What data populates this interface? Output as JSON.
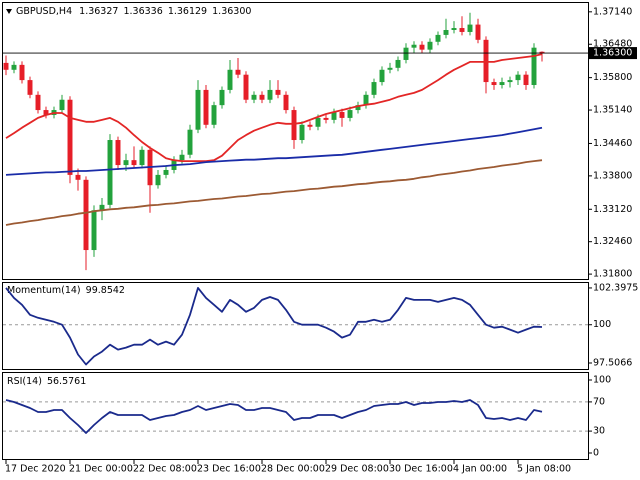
{
  "chart_data": [
    {
      "type": "candlestick",
      "title": "GBPUSD,H4",
      "last_labels": {
        "open": "1.36327",
        "high": "1.36336",
        "low": "1.36129",
        "close": "1.36300"
      },
      "categories": [
        "17 Dec 2020",
        null,
        null,
        null,
        null,
        null,
        null,
        null,
        "21 Dec 00:00",
        null,
        null,
        null,
        null,
        null,
        null,
        null,
        "22 Dec 08:00",
        null,
        null,
        null,
        null,
        null,
        null,
        null,
        "23 Dec 16:00",
        null,
        null,
        null,
        null,
        null,
        null,
        null,
        "28 Dec 00:00",
        null,
        null,
        null,
        null,
        null,
        null,
        null,
        "29 Dec 08:00",
        null,
        null,
        null,
        null,
        null,
        null,
        null,
        "30 Dec 16:00",
        null,
        null,
        null,
        null,
        null,
        null,
        null,
        "4 Jan 00:00",
        null,
        null,
        null,
        null,
        null,
        null,
        null,
        "5 Jan 08:00",
        null,
        null,
        null
      ],
      "open": [
        1.361,
        1.3596,
        1.3606,
        1.3575,
        1.3545,
        1.3514,
        1.3504,
        1.3514,
        1.3535,
        1.3382,
        1.3372,
        1.3229,
        1.331,
        1.3321,
        1.3453,
        1.3402,
        1.3412,
        1.3402,
        1.3433,
        1.3361,
        1.3382,
        1.3392,
        1.3412,
        1.3423,
        1.3474,
        1.3555,
        1.3484,
        1.3524,
        1.3555,
        1.3596,
        1.3586,
        1.3535,
        1.3545,
        1.3535,
        1.3555,
        1.3545,
        1.3514,
        1.3453,
        1.3484,
        1.348,
        1.3498,
        1.3494,
        1.351,
        1.3498,
        1.3514,
        1.3524,
        1.3545,
        1.3571,
        1.3596,
        1.36,
        1.3616,
        1.3641,
        1.3647,
        1.3637,
        1.3653,
        1.3667,
        1.3677,
        1.3681,
        1.3673,
        1.3688,
        1.3657,
        1.3571,
        1.3565,
        1.3571,
        1.3575,
        1.3586,
        1.3565,
        1.36327
      ],
      "high": [
        1.3625,
        1.3613,
        1.3613,
        1.3582,
        1.3552,
        1.3521,
        1.3521,
        1.3545,
        1.3542,
        1.3395,
        1.3379,
        1.332,
        1.3335,
        1.3465,
        1.346,
        1.3425,
        1.344,
        1.344,
        1.344,
        1.3392,
        1.3402,
        1.342,
        1.3433,
        1.3484,
        1.3575,
        1.3565,
        1.3531,
        1.3562,
        1.3616,
        1.362,
        1.3593,
        1.3552,
        1.3552,
        1.3575,
        1.3575,
        1.3552,
        1.3521,
        1.3491,
        1.3491,
        1.3505,
        1.3505,
        1.3517,
        1.3517,
        1.3521,
        1.3531,
        1.3552,
        1.3578,
        1.3603,
        1.361,
        1.3623,
        1.365,
        1.3654,
        1.3654,
        1.366,
        1.3674,
        1.37,
        1.3695,
        1.3705,
        1.3712,
        1.37,
        1.3664,
        1.3578,
        1.358,
        1.3582,
        1.3593,
        1.3593,
        1.365,
        1.36336
      ],
      "low": [
        1.3585,
        1.3589,
        1.3568,
        1.3538,
        1.3507,
        1.3497,
        1.3497,
        1.3507,
        1.3365,
        1.335,
        1.3188,
        1.3215,
        1.329,
        1.3314,
        1.3392,
        1.339,
        1.3395,
        1.3395,
        1.3305,
        1.3354,
        1.3375,
        1.3385,
        1.3405,
        1.3416,
        1.3467,
        1.3477,
        1.3477,
        1.3517,
        1.3548,
        1.3579,
        1.3528,
        1.3528,
        1.3528,
        1.3528,
        1.3538,
        1.3507,
        1.3435,
        1.3446,
        1.3473,
        1.3473,
        1.3487,
        1.3487,
        1.348,
        1.3491,
        1.3507,
        1.3517,
        1.3538,
        1.3564,
        1.3589,
        1.3593,
        1.3609,
        1.363,
        1.363,
        1.363,
        1.3646,
        1.366,
        1.367,
        1.3666,
        1.3666,
        1.365,
        1.3548,
        1.3555,
        1.3558,
        1.356,
        1.3565,
        1.3555,
        1.3558,
        1.36129
      ],
      "close": [
        1.3596,
        1.3606,
        1.3575,
        1.3545,
        1.3514,
        1.3504,
        1.3514,
        1.3535,
        1.3382,
        1.3372,
        1.3229,
        1.331,
        1.3321,
        1.3453,
        1.3402,
        1.3412,
        1.3402,
        1.3433,
        1.3361,
        1.3382,
        1.3392,
        1.3412,
        1.3423,
        1.3474,
        1.3555,
        1.3484,
        1.3524,
        1.3555,
        1.3596,
        1.3586,
        1.3535,
        1.3545,
        1.3535,
        1.3555,
        1.3545,
        1.3514,
        1.3453,
        1.3484,
        1.348,
        1.3498,
        1.3494,
        1.351,
        1.3498,
        1.3514,
        1.3524,
        1.3545,
        1.3571,
        1.3596,
        1.36,
        1.3616,
        1.3641,
        1.3647,
        1.3637,
        1.3653,
        1.3667,
        1.3677,
        1.3681,
        1.3673,
        1.3688,
        1.3657,
        1.3571,
        1.3565,
        1.3571,
        1.3575,
        1.3586,
        1.3565,
        1.3641,
        1.363
      ],
      "up_color": "#23a23c",
      "down_color": "#e61e28",
      "overlays": [
        {
          "color": "#e32626",
          "values": [
            1.3457,
            1.3467,
            1.3478,
            1.3488,
            1.3498,
            1.3504,
            1.3508,
            1.3508,
            1.3498,
            1.3494,
            1.349,
            1.349,
            1.3494,
            1.3498,
            1.349,
            1.3478,
            1.3463,
            1.3449,
            1.3437,
            1.3427,
            1.3416,
            1.3412,
            1.341,
            1.341,
            1.341,
            1.341,
            1.3412,
            1.3421,
            1.3437,
            1.3453,
            1.3463,
            1.3472,
            1.3478,
            1.3484,
            1.3488,
            1.3486,
            1.3486,
            1.3488,
            1.3494,
            1.35,
            1.3506,
            1.351,
            1.3514,
            1.3518,
            1.3522,
            1.3525,
            1.3527,
            1.3531,
            1.3535,
            1.3541,
            1.3545,
            1.3549,
            1.3555,
            1.3565,
            1.3575,
            1.3586,
            1.3596,
            1.3604,
            1.3612,
            1.3612,
            1.3612,
            1.3612,
            1.3616,
            1.3618,
            1.362,
            1.3622,
            1.3624,
            1.3628
          ]
        },
        {
          "color": "#1a2ca8",
          "values": [
            1.3382,
            1.3383,
            1.3384,
            1.3385,
            1.3386,
            1.3387,
            1.3387,
            1.3388,
            1.3389,
            1.339,
            1.339,
            1.3391,
            1.3392,
            1.3393,
            1.3394,
            1.3395,
            1.3396,
            1.3397,
            1.3398,
            1.3399,
            1.34,
            1.3402,
            1.3403,
            1.3404,
            1.3406,
            1.3408,
            1.3409,
            1.341,
            1.3411,
            1.3412,
            1.3413,
            1.3413,
            1.3414,
            1.3415,
            1.3416,
            1.3416,
            1.3417,
            1.3418,
            1.3419,
            1.342,
            1.3421,
            1.3422,
            1.3423,
            1.3425,
            1.3427,
            1.3429,
            1.3431,
            1.3433,
            1.3435,
            1.3437,
            1.3439,
            1.3441,
            1.3443,
            1.3445,
            1.3447,
            1.3449,
            1.3451,
            1.3453,
            1.3455,
            1.3457,
            1.3459,
            1.3461,
            1.3463,
            1.3466,
            1.3469,
            1.3472,
            1.3475,
            1.3478
          ]
        },
        {
          "color": "#9c5a33",
          "values": [
            1.328,
            1.3283,
            1.3285,
            1.3288,
            1.329,
            1.3293,
            1.3295,
            1.3298,
            1.33,
            1.3303,
            1.3305,
            1.3308,
            1.331,
            1.3312,
            1.3313,
            1.3315,
            1.3316,
            1.3318,
            1.332,
            1.3321,
            1.3323,
            1.3324,
            1.3326,
            1.3328,
            1.3329,
            1.3331,
            1.3333,
            1.3334,
            1.3336,
            1.3338,
            1.3339,
            1.3341,
            1.3343,
            1.3344,
            1.3346,
            1.3348,
            1.3349,
            1.3351,
            1.3353,
            1.3354,
            1.3356,
            1.3358,
            1.3359,
            1.3361,
            1.3363,
            1.3364,
            1.3366,
            1.3368,
            1.3369,
            1.3371,
            1.3372,
            1.3374,
            1.3377,
            1.3379,
            1.3382,
            1.3384,
            1.3386,
            1.3389,
            1.3391,
            1.3394,
            1.3396,
            1.3398,
            1.3401,
            1.3403,
            1.3405,
            1.3408,
            1.341,
            1.3412
          ]
        }
      ],
      "ylim": [
        1.3168,
        1.3734
      ],
      "yticks": [
        {
          "value": 1.3714,
          "label": "1.37140"
        },
        {
          "value": 1.3648,
          "label": "1.36480"
        },
        {
          "value": 1.358,
          "label": "1.35800"
        },
        {
          "value": 1.3514,
          "label": "1.35140"
        },
        {
          "value": 1.3446,
          "label": "1.34460"
        },
        {
          "value": 1.338,
          "label": "1.33800"
        },
        {
          "value": 1.3312,
          "label": "1.33120"
        },
        {
          "value": 1.3246,
          "label": "1.32460"
        },
        {
          "value": 1.318,
          "label": "1.31800"
        }
      ]
    },
    {
      "type": "line",
      "title": "Momentum(14)",
      "color": "#1a2a8c",
      "values": [
        102.4,
        101.75,
        101.3,
        100.65,
        100.45,
        100.32,
        100.19,
        100.0,
        99.16,
        98.06,
        97.41,
        97.93,
        98.25,
        98.7,
        98.38,
        98.51,
        98.7,
        98.7,
        99.03,
        98.7,
        98.9,
        98.7,
        99.35,
        100.65,
        102.4,
        101.75,
        101.3,
        100.84,
        101.62,
        101.3,
        100.84,
        101.1,
        101.62,
        101.81,
        101.62,
        100.97,
        100.19,
        100.0,
        100.0,
        100.0,
        99.81,
        99.55,
        99.16,
        99.35,
        100.19,
        100.19,
        100.32,
        100.19,
        100.32,
        100.97,
        101.75,
        101.62,
        101.62,
        101.62,
        101.49,
        101.62,
        101.75,
        101.62,
        101.3,
        100.65,
        100.0,
        99.81,
        99.87,
        99.68,
        99.48,
        99.68,
        99.87,
        99.8542
      ],
      "ylim": [
        97.05,
        102.72
      ],
      "yticks": [
        97.5066,
        100,
        102.3975
      ],
      "levels": [
        100
      ]
    },
    {
      "type": "line",
      "title": "RSI(14)",
      "color": "#1a2a8c",
      "values": [
        72.6,
        69.9,
        65.8,
        61.6,
        56.2,
        56.2,
        58.9,
        58.9,
        47.9,
        38.4,
        27.4,
        38.4,
        47.9,
        56.2,
        52.1,
        52.1,
        52.1,
        52.1,
        45.2,
        47.9,
        50.7,
        52.1,
        56.2,
        58.9,
        64.4,
        58.9,
        61.6,
        64.4,
        67.1,
        65.8,
        58.9,
        58.9,
        61.6,
        61.6,
        58.9,
        56.2,
        45.2,
        47.9,
        47.9,
        52.1,
        52.1,
        52.1,
        47.9,
        52.1,
        56.2,
        58.9,
        64.4,
        65.8,
        67.1,
        67.1,
        69.9,
        65.8,
        68.5,
        68.5,
        69.9,
        69.9,
        71.2,
        69.9,
        72.6,
        65.8,
        47.9,
        46.6,
        47.9,
        45.2,
        47.9,
        45.2,
        58.9,
        56.5761
      ],
      "ylim": [
        -9.6,
        109.6
      ],
      "yticks": [
        0,
        30,
        70,
        100
      ],
      "levels": [
        30,
        70
      ]
    }
  ]
}
